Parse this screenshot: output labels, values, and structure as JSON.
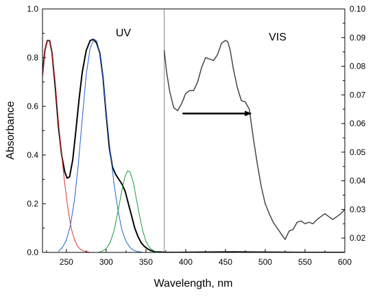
{
  "chart_data": {
    "type": "line",
    "xlabel": "Wavelength, nm",
    "ylabel": "Absorbance",
    "xlim": [
      220,
      600
    ],
    "ylim_left": [
      0,
      1.0
    ],
    "ylim_right": [
      0.015,
      0.1
    ],
    "x_ticks": [
      250,
      300,
      350,
      400,
      450,
      500,
      550,
      600
    ],
    "y_ticks_left": [
      "0.0",
      "0.2",
      "0.4",
      "0.6",
      "0.8",
      "1.0"
    ],
    "y_ticks_right": [
      "0.02",
      "0.03",
      "0.04",
      "0.05",
      "0.06",
      "0.07",
      "0.08",
      "0.09",
      "0.10"
    ],
    "region_labels": [
      "UV",
      "VIS"
    ],
    "divider_x": 373,
    "grid": false,
    "arrow": {
      "from": [
        396,
        0.0635
      ],
      "to": [
        482,
        0.0635
      ],
      "axis": "right"
    },
    "series": [
      {
        "axis": "left",
        "color": "#000000",
        "width": 2,
        "x": [
          220,
          223,
          226,
          229,
          232,
          236,
          240,
          244,
          248,
          251,
          254,
          258,
          262,
          266,
          270,
          275,
          280,
          284,
          288,
          292,
          296,
          300,
          304,
          308,
          312,
          316,
          320,
          324,
          328,
          332,
          336,
          340,
          344,
          348,
          352,
          356,
          360,
          365,
          370,
          375,
          380,
          420,
          460,
          500,
          550,
          600
        ],
        "y": [
          0.73,
          0.83,
          0.87,
          0.87,
          0.82,
          0.68,
          0.52,
          0.4,
          0.33,
          0.305,
          0.31,
          0.38,
          0.5,
          0.63,
          0.74,
          0.83,
          0.87,
          0.875,
          0.86,
          0.82,
          0.72,
          0.57,
          0.43,
          0.35,
          0.32,
          0.3,
          0.28,
          0.25,
          0.2,
          0.15,
          0.1,
          0.065,
          0.04,
          0.025,
          0.015,
          0.008,
          0.004,
          0.002,
          0.001,
          0.0,
          0.0,
          0.001,
          0.002,
          0.001,
          0.0,
          0.0
        ]
      },
      {
        "axis": "left",
        "color": "#e03030",
        "width": 1,
        "x": [
          220,
          223,
          226,
          229,
          232,
          236,
          240,
          244,
          248,
          252,
          256,
          260,
          264,
          268,
          272,
          276,
          280
        ],
        "y": [
          0.72,
          0.83,
          0.87,
          0.87,
          0.82,
          0.7,
          0.54,
          0.4,
          0.28,
          0.18,
          0.1,
          0.055,
          0.025,
          0.012,
          0.005,
          0.002,
          0.0
        ]
      },
      {
        "axis": "left",
        "color": "#1f5fd6",
        "width": 1,
        "x": [
          240,
          245,
          250,
          255,
          260,
          265,
          270,
          275,
          280,
          285,
          288,
          292,
          296,
          300,
          305,
          310,
          315,
          320,
          325,
          330,
          335,
          340,
          345
        ],
        "y": [
          0.005,
          0.02,
          0.05,
          0.11,
          0.21,
          0.36,
          0.55,
          0.73,
          0.84,
          0.875,
          0.87,
          0.82,
          0.72,
          0.58,
          0.42,
          0.28,
          0.17,
          0.09,
          0.045,
          0.02,
          0.008,
          0.003,
          0.001
        ]
      },
      {
        "axis": "left",
        "color": "#1a9a40",
        "width": 1,
        "x": [
          290,
          295,
          300,
          305,
          310,
          315,
          320,
          324,
          327,
          330,
          334,
          338,
          342,
          346,
          350,
          355,
          360,
          365
        ],
        "y": [
          0.0,
          0.005,
          0.015,
          0.04,
          0.09,
          0.17,
          0.26,
          0.315,
          0.335,
          0.33,
          0.29,
          0.22,
          0.15,
          0.09,
          0.045,
          0.018,
          0.006,
          0.001
        ]
      },
      {
        "axis": "right",
        "color": "#444444",
        "width": 1.5,
        "x": [
          373,
          376,
          380,
          385,
          390,
          395,
          400,
          405,
          410,
          415,
          420,
          425,
          430,
          435,
          440,
          445,
          450,
          453,
          456,
          460,
          465,
          470,
          475,
          480,
          485,
          490,
          495,
          500,
          505,
          510,
          515,
          520,
          525,
          530,
          535,
          540,
          545,
          550,
          555,
          560,
          565,
          570,
          575,
          580,
          585,
          590,
          595,
          600
        ],
        "y": [
          0.0855,
          0.078,
          0.071,
          0.0655,
          0.0645,
          0.067,
          0.0705,
          0.0715,
          0.0715,
          0.0745,
          0.0795,
          0.083,
          0.0825,
          0.082,
          0.084,
          0.088,
          0.089,
          0.0885,
          0.0855,
          0.079,
          0.0725,
          0.068,
          0.0675,
          0.065,
          0.055,
          0.046,
          0.038,
          0.032,
          0.0285,
          0.0255,
          0.0235,
          0.0215,
          0.0195,
          0.0225,
          0.023,
          0.0255,
          0.026,
          0.025,
          0.0255,
          0.025,
          0.0265,
          0.0275,
          0.0285,
          0.0275,
          0.0265,
          0.0275,
          0.0285,
          0.03
        ]
      }
    ]
  }
}
